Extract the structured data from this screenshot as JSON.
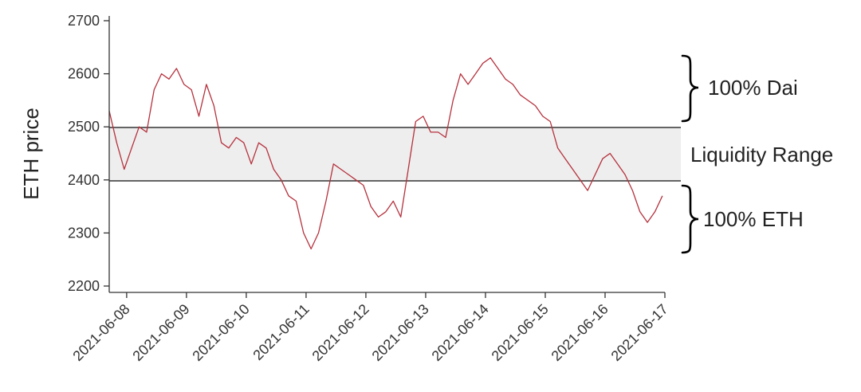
{
  "chart_data": {
    "type": "line",
    "title": "",
    "xlabel": "",
    "ylabel": "ETH price",
    "ylim": [
      2200,
      2700
    ],
    "xlim": [
      "2021-06-07T17:00",
      "2021-06-17T00:00"
    ],
    "y_ticks": [
      2200,
      2300,
      2400,
      2500,
      2600,
      2700
    ],
    "x_ticks": [
      "2021-06-08",
      "2021-06-09",
      "2021-06-10",
      "2021-06-11",
      "2021-06-12",
      "2021-06-13",
      "2021-06-14",
      "2021-06-15",
      "2021-06-16",
      "2021-06-17"
    ],
    "grid": false,
    "line_color": "#b5313d",
    "series": [
      {
        "x": [
          "2021-06-07T17:00",
          "2021-06-07T20:00",
          "2021-06-07T23:00",
          "2021-06-08T02:00",
          "2021-06-08T05:00",
          "2021-06-08T08:00",
          "2021-06-08T11:00",
          "2021-06-08T14:00",
          "2021-06-08T17:00",
          "2021-06-08T20:00",
          "2021-06-08T23:00",
          "2021-06-09T02:00",
          "2021-06-09T05:00",
          "2021-06-09T08:00",
          "2021-06-09T11:00",
          "2021-06-09T14:00",
          "2021-06-09T17:00",
          "2021-06-09T20:00",
          "2021-06-09T23:00",
          "2021-06-10T02:00",
          "2021-06-10T05:00",
          "2021-06-10T08:00",
          "2021-06-10T11:00",
          "2021-06-10T14:00",
          "2021-06-10T17:00",
          "2021-06-10T20:00",
          "2021-06-10T23:00",
          "2021-06-11T02:00",
          "2021-06-11T05:00",
          "2021-06-11T08:00",
          "2021-06-11T11:00",
          "2021-06-11T14:00",
          "2021-06-11T17:00",
          "2021-06-11T20:00",
          "2021-06-11T23:00",
          "2021-06-12T02:00",
          "2021-06-12T05:00",
          "2021-06-12T08:00",
          "2021-06-12T11:00",
          "2021-06-12T14:00",
          "2021-06-12T17:00",
          "2021-06-12T20:00",
          "2021-06-12T23:00",
          "2021-06-13T02:00",
          "2021-06-13T05:00",
          "2021-06-13T08:00",
          "2021-06-13T11:00",
          "2021-06-13T14:00",
          "2021-06-13T17:00",
          "2021-06-13T20:00",
          "2021-06-13T23:00",
          "2021-06-14T02:00",
          "2021-06-14T05:00",
          "2021-06-14T08:00",
          "2021-06-14T11:00",
          "2021-06-14T14:00",
          "2021-06-14T17:00",
          "2021-06-14T20:00",
          "2021-06-14T23:00",
          "2021-06-15T02:00",
          "2021-06-15T05:00",
          "2021-06-15T08:00",
          "2021-06-15T11:00",
          "2021-06-15T14:00",
          "2021-06-15T17:00",
          "2021-06-15T20:00",
          "2021-06-15T23:00",
          "2021-06-16T02:00",
          "2021-06-16T05:00",
          "2021-06-16T08:00",
          "2021-06-16T11:00",
          "2021-06-16T14:00",
          "2021-06-16T17:00",
          "2021-06-16T20:00",
          "2021-06-16T23:00"
        ],
        "values": [
          2530,
          2470,
          2420,
          2460,
          2500,
          2490,
          2570,
          2600,
          2590,
          2610,
          2580,
          2570,
          2520,
          2580,
          2540,
          2470,
          2460,
          2480,
          2470,
          2430,
          2470,
          2460,
          2420,
          2400,
          2370,
          2360,
          2300,
          2270,
          2300,
          2360,
          2430,
          2420,
          2410,
          2400,
          2390,
          2350,
          2330,
          2340,
          2360,
          2330,
          2420,
          2510,
          2520,
          2490,
          2490,
          2480,
          2550,
          2600,
          2580,
          2600,
          2620,
          2630,
          2610,
          2590,
          2580,
          2560,
          2550,
          2540,
          2520,
          2510,
          2460,
          2440,
          2420,
          2400,
          2380,
          2410,
          2440,
          2450,
          2430,
          2410,
          2380,
          2340,
          2320,
          2340,
          2370
        ]
      }
    ],
    "range_band": [
      2400,
      2500
    ]
  },
  "annotations": {
    "dai_label": "100% Dai",
    "range_label": "Liquidity Range",
    "eth_label": "100% ETH"
  }
}
